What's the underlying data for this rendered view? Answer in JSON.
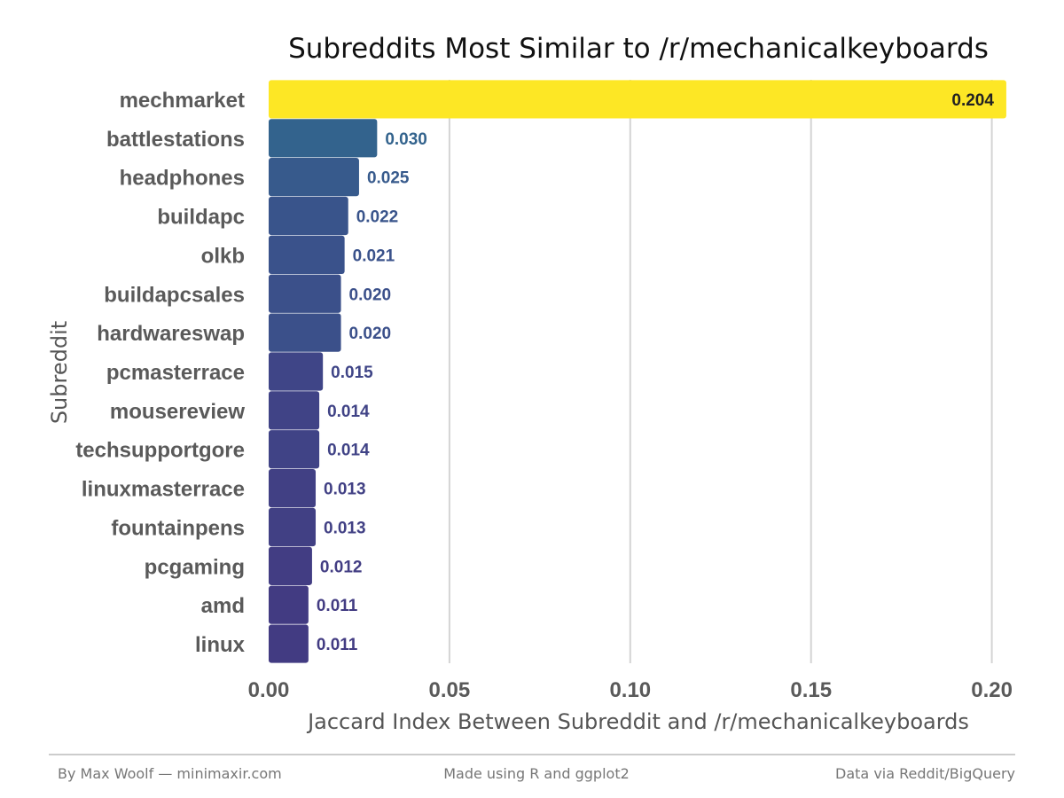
{
  "chart_data": {
    "type": "bar",
    "orientation": "horizontal",
    "title": "Subreddits Most Similar to /r/mechanicalkeyboards",
    "xlabel": "Jaccard Index Between Subreddit and /r/mechanicalkeyboards",
    "ylabel": "Subreddit",
    "xlim": [
      0,
      0.205
    ],
    "x_ticks": [
      0,
      0.05,
      0.1,
      0.15,
      0.2
    ],
    "x_tick_labels": [
      "0.00",
      "0.05",
      "0.10",
      "0.15",
      "0.20"
    ],
    "grid": "vertical major",
    "legend": "none",
    "color_scale": "viridis",
    "categories": [
      "mechmarket",
      "battlestations",
      "headphones",
      "buildapc",
      "olkb",
      "buildapcsales",
      "hardwareswap",
      "pcmasterrace",
      "mousereview",
      "techsupportgore",
      "linuxmasterrace",
      "fountainpens",
      "pcgaming",
      "amd",
      "linux"
    ],
    "values": [
      0.204,
      0.03,
      0.025,
      0.022,
      0.021,
      0.02,
      0.02,
      0.015,
      0.014,
      0.014,
      0.013,
      0.013,
      0.012,
      0.011,
      0.011
    ],
    "value_labels": [
      "0.204",
      "0.030",
      "0.025",
      "0.022",
      "0.021",
      "0.020",
      "0.020",
      "0.015",
      "0.014",
      "0.014",
      "0.013",
      "0.013",
      "0.012",
      "0.011",
      "0.011"
    ]
  },
  "footer": {
    "left": "By Max Woolf — minimaxir.com",
    "center": "Made using R and ggplot2",
    "right": "Data via Reddit/BigQuery"
  },
  "colors": {
    "top_bar": "#fde725",
    "low_bar": "#440154",
    "top_label": "#222222",
    "grid": "#d4d4d4",
    "rule": "#bbbbbb"
  }
}
